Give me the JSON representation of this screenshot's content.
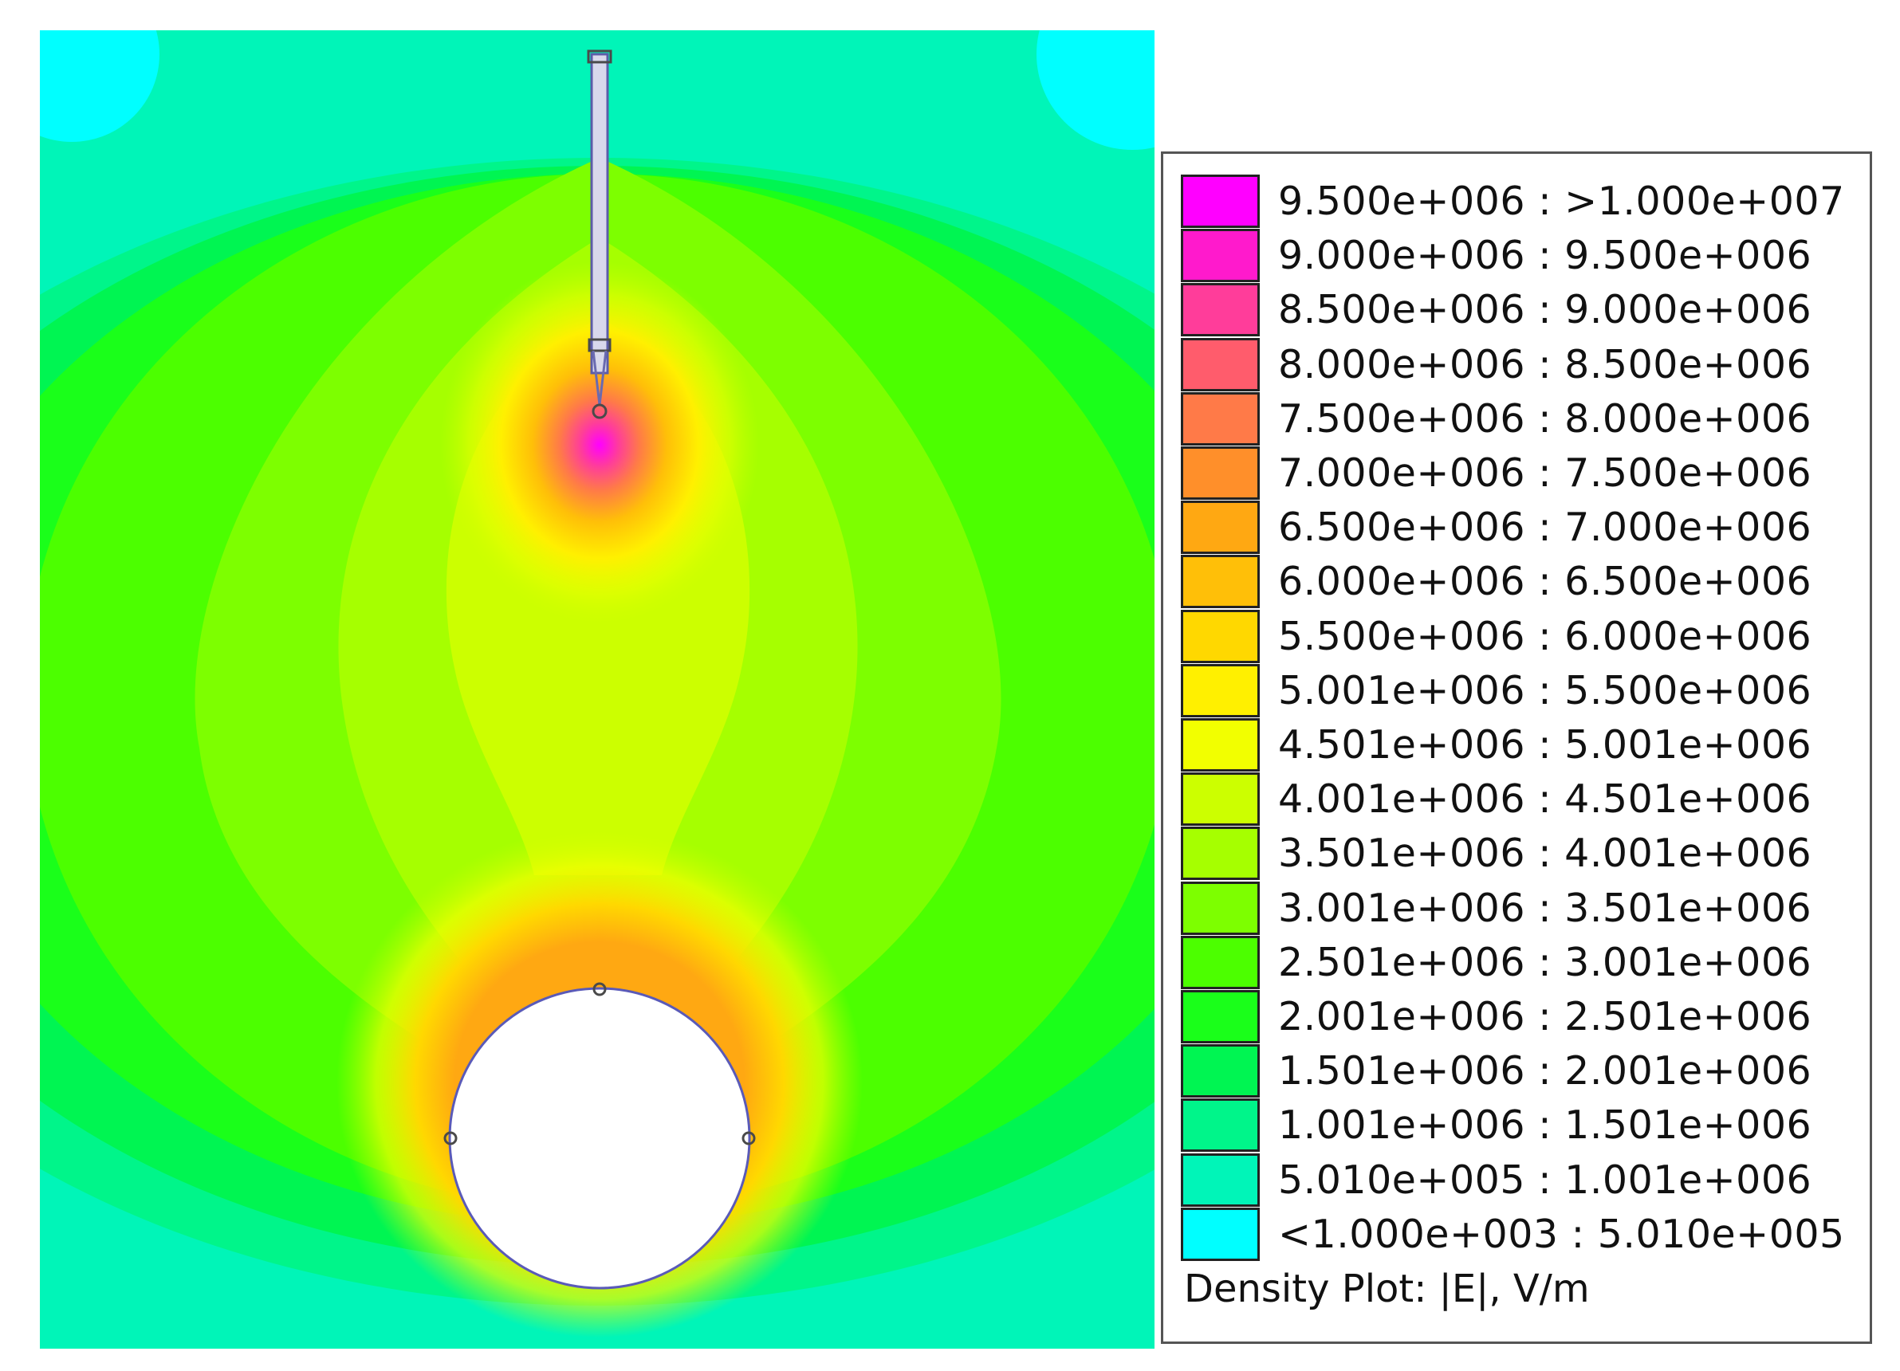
{
  "legend": {
    "title": "Density Plot: |E|, V/m",
    "bins": [
      {
        "label": "9.500e+006 : >1.000e+007",
        "color": "#ff00ff"
      },
      {
        "label": "9.000e+006 : 9.500e+006",
        "color": "#ff1acc"
      },
      {
        "label": "8.500e+006 : 9.000e+006",
        "color": "#ff3d9a"
      },
      {
        "label": "8.000e+006 : 8.500e+006",
        "color": "#ff5c6c"
      },
      {
        "label": "7.500e+006 : 8.000e+006",
        "color": "#ff7a48"
      },
      {
        "label": "7.000e+006 : 7.500e+006",
        "color": "#ff8f2a"
      },
      {
        "label": "6.500e+006 : 7.000e+006",
        "color": "#ffa812"
      },
      {
        "label": "6.000e+006 : 6.500e+006",
        "color": "#ffbf08"
      },
      {
        "label": "5.500e+006 : 6.000e+006",
        "color": "#ffd800"
      },
      {
        "label": "5.001e+006 : 5.500e+006",
        "color": "#fff000"
      },
      {
        "label": "4.501e+006 : 5.001e+006",
        "color": "#f2ff00"
      },
      {
        "label": "4.001e+006 : 4.501e+006",
        "color": "#ccff00"
      },
      {
        "label": "3.501e+006 : 4.001e+006",
        "color": "#a6ff00"
      },
      {
        "label": "3.001e+006 : 3.501e+006",
        "color": "#7dff00"
      },
      {
        "label": "2.501e+006 : 3.001e+006",
        "color": "#4cff00"
      },
      {
        "label": "2.001e+006 : 2.501e+006",
        "color": "#1aff1a"
      },
      {
        "label": "1.501e+006 : 2.001e+006",
        "color": "#00f552"
      },
      {
        "label": "1.001e+006 : 1.501e+006",
        "color": "#00f58a"
      },
      {
        "label": "5.010e+005 : 1.001e+006",
        "color": "#00f5b8"
      },
      {
        "label": "<1.000e+003 : 5.010e+005",
        "color": "#00ffff"
      }
    ]
  }
}
